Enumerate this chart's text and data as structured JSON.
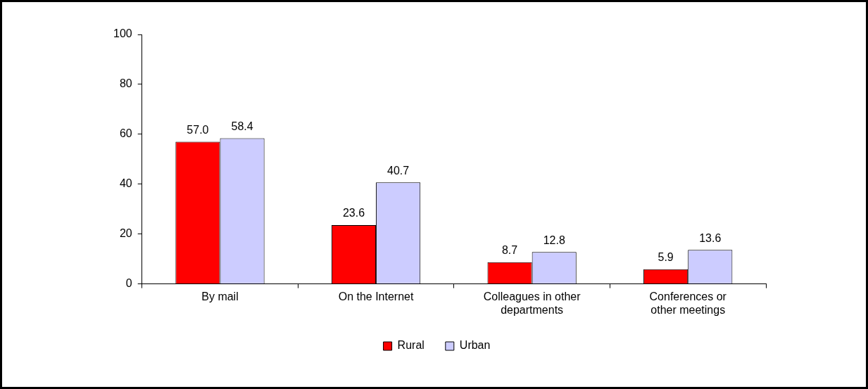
{
  "chart_data": {
    "type": "bar",
    "categories": [
      "By mail",
      "On the Internet",
      "Colleagues in other departments",
      "Conferences or other meetings"
    ],
    "series": [
      {
        "name": "Rural",
        "color": "#ff0000",
        "values": [
          57.0,
          23.6,
          8.7,
          5.9
        ],
        "value_labels": [
          "57.0",
          "23.6",
          "8.7",
          "5.9"
        ]
      },
      {
        "name": "Urban",
        "color": "#ccccff",
        "values": [
          58.4,
          40.7,
          12.8,
          13.6
        ],
        "value_labels": [
          "58.4",
          "40.7",
          "12.8",
          "13.6"
        ]
      }
    ],
    "ylim": [
      0,
      100
    ],
    "yticks": [
      0,
      20,
      40,
      60,
      80,
      100
    ],
    "grid": false,
    "legend": "bottom"
  }
}
